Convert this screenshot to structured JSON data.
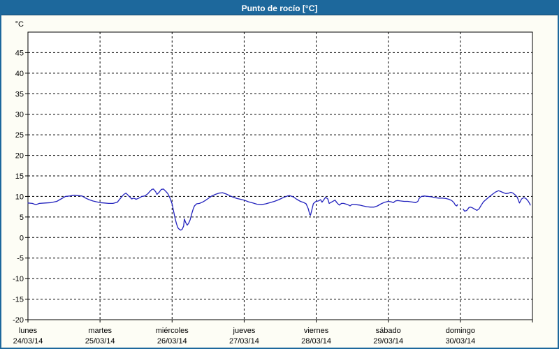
{
  "window": {
    "title": "Punto de rocío [°C]"
  },
  "colors": {
    "titlebar_bg": "#1d689c",
    "titlebar_border": "#14476e",
    "title_text": "#ffffff",
    "outer_bg": "#fdfdf5",
    "plot_bg": "#ffffff",
    "frame": "#000000",
    "grid": "#000000",
    "line": "#2121bd",
    "label": "#000000"
  },
  "chart_data": {
    "type": "line",
    "title": "Punto de rocío [°C]",
    "y_unit": "°C",
    "xlabel": "",
    "ylabel": "",
    "ylim": [
      -20,
      50
    ],
    "yticks": {
      "min": -20,
      "max": 45,
      "step": 5
    },
    "x_range_days": [
      0,
      7
    ],
    "grid": "dashed",
    "legend": "none",
    "x_days": [
      {
        "weekday": "lunes",
        "date": "24/03/14"
      },
      {
        "weekday": "martes",
        "date": "25/03/14"
      },
      {
        "weekday": "miércoles",
        "date": "26/03/14"
      },
      {
        "weekday": "jueves",
        "date": "27/03/14"
      },
      {
        "weekday": "viernes",
        "date": "28/03/14"
      },
      {
        "weekday": "sábado",
        "date": "29/03/14"
      },
      {
        "weekday": "domingo",
        "date": "30/03/14"
      }
    ],
    "series": [
      {
        "name": "Punto de rocío",
        "color": "#2121bd",
        "unit": "°C",
        "segments": [
          [
            [
              0.0,
              8.4
            ],
            [
              0.06,
              8.3
            ],
            [
              0.11,
              8.0
            ],
            [
              0.16,
              8.3
            ],
            [
              0.24,
              8.4
            ],
            [
              0.32,
              8.5
            ],
            [
              0.4,
              8.8
            ],
            [
              0.46,
              9.4
            ],
            [
              0.52,
              10.0
            ],
            [
              0.58,
              10.1
            ],
            [
              0.64,
              10.3
            ],
            [
              0.7,
              10.2
            ],
            [
              0.75,
              10.1
            ],
            [
              0.8,
              9.6
            ],
            [
              0.85,
              9.2
            ],
            [
              0.9,
              8.9
            ],
            [
              0.95,
              8.7
            ],
            [
              1.0,
              8.5
            ],
            [
              1.06,
              8.4
            ],
            [
              1.12,
              8.3
            ],
            [
              1.18,
              8.3
            ],
            [
              1.24,
              8.6
            ],
            [
              1.29,
              9.7
            ],
            [
              1.33,
              10.5
            ],
            [
              1.36,
              10.8
            ],
            [
              1.4,
              10.1
            ],
            [
              1.44,
              9.4
            ],
            [
              1.47,
              9.6
            ],
            [
              1.5,
              9.3
            ],
            [
              1.54,
              9.6
            ],
            [
              1.58,
              10.0
            ],
            [
              1.62,
              10.1
            ],
            [
              1.66,
              10.6
            ],
            [
              1.69,
              11.2
            ],
            [
              1.72,
              11.7
            ],
            [
              1.74,
              11.8
            ],
            [
              1.77,
              11.2
            ],
            [
              1.79,
              10.5
            ],
            [
              1.82,
              11.0
            ],
            [
              1.85,
              11.7
            ],
            [
              1.88,
              11.8
            ],
            [
              1.91,
              11.3
            ],
            [
              1.94,
              10.7
            ],
            [
              1.96,
              10.0
            ],
            [
              1.98,
              9.2
            ],
            [
              2.0,
              8.2
            ],
            [
              2.02,
              6.5
            ],
            [
              2.04,
              4.8
            ],
            [
              2.06,
              3.4
            ],
            [
              2.08,
              2.4
            ],
            [
              2.1,
              2.0
            ],
            [
              2.12,
              1.8
            ],
            [
              2.14,
              2.0
            ],
            [
              2.16,
              2.8
            ],
            [
              2.17,
              4.5
            ],
            [
              2.19,
              3.6
            ],
            [
              2.21,
              3.0
            ],
            [
              2.23,
              3.5
            ],
            [
              2.25,
              4.3
            ],
            [
              2.27,
              5.6
            ],
            [
              2.29,
              6.8
            ],
            [
              2.31,
              7.7
            ],
            [
              2.34,
              8.2
            ],
            [
              2.38,
              8.3
            ],
            [
              2.42,
              8.6
            ],
            [
              2.46,
              9.0
            ],
            [
              2.5,
              9.5
            ],
            [
              2.55,
              10.1
            ],
            [
              2.6,
              10.5
            ],
            [
              2.65,
              10.8
            ],
            [
              2.7,
              10.9
            ],
            [
              2.75,
              10.6
            ],
            [
              2.8,
              10.2
            ],
            [
              2.85,
              9.8
            ],
            [
              2.9,
              9.5
            ],
            [
              2.95,
              9.3
            ],
            [
              3.0,
              9.1
            ],
            [
              3.06,
              8.7
            ],
            [
              3.12,
              8.4
            ],
            [
              3.18,
              8.1
            ],
            [
              3.24,
              8.0
            ],
            [
              3.3,
              8.2
            ],
            [
              3.36,
              8.5
            ],
            [
              3.42,
              8.8
            ],
            [
              3.48,
              9.2
            ],
            [
              3.54,
              9.7
            ],
            [
              3.6,
              10.1
            ],
            [
              3.63,
              10.2
            ],
            [
              3.68,
              9.9
            ],
            [
              3.73,
              9.3
            ],
            [
              3.78,
              8.8
            ],
            [
              3.83,
              8.5
            ],
            [
              3.86,
              8.2
            ],
            [
              3.89,
              7.0
            ],
            [
              3.91,
              5.6
            ],
            [
              3.92,
              5.4
            ],
            [
              3.94,
              6.8
            ],
            [
              3.96,
              8.2
            ],
            [
              3.98,
              8.6
            ],
            [
              4.0,
              8.8
            ],
            [
              4.03,
              8.9
            ],
            [
              4.06,
              9.2
            ],
            [
              4.08,
              8.6
            ],
            [
              4.11,
              9.3
            ],
            [
              4.13,
              9.8
            ],
            [
              4.16,
              9.4
            ],
            [
              4.18,
              8.3
            ],
            [
              4.21,
              8.6
            ],
            [
              4.24,
              8.9
            ],
            [
              4.26,
              9.1
            ],
            [
              4.29,
              8.4
            ],
            [
              4.32,
              7.9
            ],
            [
              4.35,
              8.3
            ],
            [
              4.38,
              8.3
            ],
            [
              4.42,
              8.1
            ],
            [
              4.45,
              7.9
            ],
            [
              4.47,
              7.7
            ],
            [
              4.5,
              8.1
            ],
            [
              4.55,
              8.0
            ],
            [
              4.6,
              7.9
            ],
            [
              4.65,
              7.7
            ],
            [
              4.7,
              7.5
            ],
            [
              4.75,
              7.4
            ],
            [
              4.8,
              7.4
            ],
            [
              4.85,
              7.7
            ],
            [
              4.9,
              8.2
            ],
            [
              4.95,
              8.6
            ],
            [
              5.0,
              8.8
            ],
            [
              5.04,
              8.7
            ],
            [
              5.07,
              8.5
            ],
            [
              5.1,
              8.9
            ],
            [
              5.13,
              9.0
            ],
            [
              5.17,
              8.9
            ],
            [
              5.22,
              8.8
            ],
            [
              5.27,
              8.8
            ],
            [
              5.31,
              8.7
            ],
            [
              5.35,
              8.6
            ],
            [
              5.38,
              8.5
            ],
            [
              5.41,
              8.8
            ],
            [
              5.43,
              9.6
            ],
            [
              5.46,
              10.0
            ],
            [
              5.5,
              10.1
            ],
            [
              5.55,
              10.0
            ],
            [
              5.6,
              9.9
            ],
            [
              5.65,
              9.7
            ],
            [
              5.7,
              9.6
            ],
            [
              5.75,
              9.6
            ],
            [
              5.8,
              9.5
            ],
            [
              5.84,
              9.3
            ],
            [
              5.88,
              9.0
            ],
            [
              5.91,
              8.5
            ],
            [
              5.93,
              7.9
            ],
            [
              5.95,
              7.7
            ],
            [
              5.96,
              8.0
            ]
          ],
          [
            [
              6.04,
              6.9
            ],
            [
              6.06,
              6.4
            ],
            [
              6.09,
              6.6
            ],
            [
              6.12,
              7.3
            ],
            [
              6.14,
              7.4
            ],
            [
              6.17,
              7.2
            ],
            [
              6.2,
              6.9
            ],
            [
              6.23,
              6.6
            ],
            [
              6.26,
              7.0
            ],
            [
              6.29,
              7.9
            ],
            [
              6.32,
              8.7
            ],
            [
              6.36,
              9.3
            ],
            [
              6.4,
              9.9
            ],
            [
              6.45,
              10.6
            ],
            [
              6.49,
              11.1
            ],
            [
              6.53,
              11.4
            ],
            [
              6.56,
              11.2
            ],
            [
              6.6,
              10.9
            ],
            [
              6.63,
              10.7
            ],
            [
              6.67,
              10.8
            ],
            [
              6.7,
              11.0
            ],
            [
              6.73,
              10.8
            ],
            [
              6.76,
              10.4
            ],
            [
              6.79,
              9.8
            ],
            [
              6.82,
              8.4
            ],
            [
              6.85,
              9.4
            ],
            [
              6.88,
              9.7
            ],
            [
              6.91,
              9.5
            ],
            [
              6.94,
              8.9
            ],
            [
              6.96,
              8.3
            ],
            [
              6.97,
              7.9
            ]
          ]
        ]
      }
    ]
  }
}
